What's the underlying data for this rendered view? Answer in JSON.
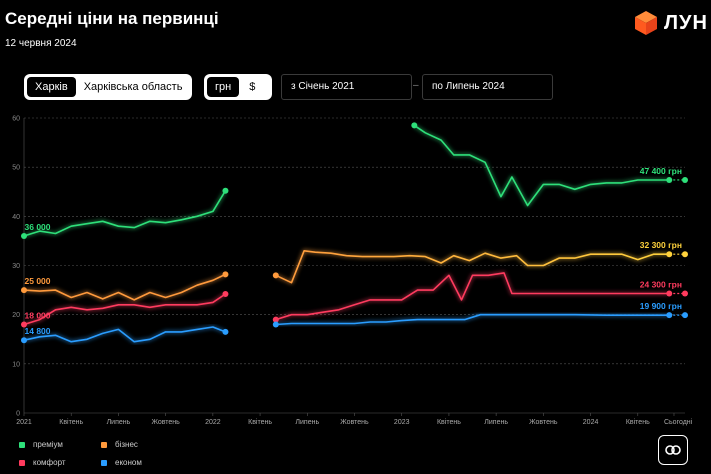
{
  "header": {
    "title": "Середні ціни на первинці",
    "date": "12 червня 2024",
    "logo_text": "ЛУН"
  },
  "controls": {
    "region_tabs": [
      {
        "label": "Харків",
        "active": true
      },
      {
        "label": "Харківська область",
        "active": false
      }
    ],
    "currency_tabs": [
      {
        "label": "грн",
        "active": true
      },
      {
        "label": "$",
        "active": false
      }
    ],
    "date_from": "з  Січень 2021",
    "date_to": "по  Липень 2024",
    "dash": "–"
  },
  "colors": {
    "premium": "#2ee07a",
    "business": "#ff9a3c",
    "comfort": "#ff3b5e",
    "economy": "#2a9dff",
    "business_recent": "#ffd23c"
  },
  "legend": [
    {
      "label": "преміум",
      "color": "#2ee07a"
    },
    {
      "label": "бізнес",
      "color": "#ff9a3c"
    },
    {
      "label": "комфорт",
      "color": "#ff3b5e"
    },
    {
      "label": "економ",
      "color": "#2a9dff"
    }
  ],
  "chart_data": {
    "type": "line",
    "x_range": [
      0,
      42
    ],
    "y_range": [
      0,
      60
    ],
    "y_ticks": [
      "0",
      "10",
      "20",
      "30",
      "40",
      "50",
      "60"
    ],
    "x_ticks": [
      {
        "x": 0,
        "label": "2021"
      },
      {
        "x": 3,
        "label": "Квітень"
      },
      {
        "x": 6,
        "label": "Липень"
      },
      {
        "x": 9,
        "label": "Жовтень"
      },
      {
        "x": 12,
        "label": "2022"
      },
      {
        "x": 15,
        "label": "Квітень"
      },
      {
        "x": 18,
        "label": "Липень"
      },
      {
        "x": 21,
        "label": "Жовтень"
      },
      {
        "x": 24,
        "label": "2023"
      },
      {
        "x": 27,
        "label": "Квітень"
      },
      {
        "x": 30,
        "label": "Липень"
      },
      {
        "x": 33,
        "label": "Жовтень"
      },
      {
        "x": 36,
        "label": "2024"
      },
      {
        "x": 39,
        "label": "Квітень"
      },
      {
        "x": 41.3,
        "label": "Сьогодні"
      }
    ],
    "series": [
      {
        "name": "преміум",
        "key": "premium",
        "segments": [
          [
            [
              0,
              36
            ],
            [
              0.5,
              36.5
            ],
            [
              1,
              37
            ],
            [
              2,
              36.5
            ],
            [
              3,
              38
            ],
            [
              4,
              38.5
            ],
            [
              5,
              39
            ],
            [
              6,
              38
            ],
            [
              7,
              37.7
            ],
            [
              8,
              39
            ],
            [
              9,
              38.7
            ],
            [
              10,
              39.3
            ],
            [
              11,
              40
            ],
            [
              12,
              41
            ],
            [
              12.8,
              45.2
            ]
          ],
          [
            [
              24.8,
              58.5
            ],
            [
              25.5,
              57
            ],
            [
              26.5,
              55.5
            ],
            [
              27.3,
              52.5
            ],
            [
              28.3,
              52.5
            ],
            [
              29.3,
              51
            ],
            [
              30.3,
              44
            ],
            [
              31,
              48
            ],
            [
              32,
              42.2
            ],
            [
              33,
              46.5
            ],
            [
              34,
              46.5
            ],
            [
              35,
              45.5
            ],
            [
              36,
              46.5
            ],
            [
              37,
              46.8
            ],
            [
              38,
              46.8
            ],
            [
              39,
              47.4
            ],
            [
              41,
              47.4
            ]
          ]
        ],
        "start_label": "36 000",
        "end_label": "47 400 грн"
      },
      {
        "name": "бізнес",
        "key": "business",
        "segments": [
          [
            [
              0,
              25
            ],
            [
              1,
              24.8
            ],
            [
              2,
              25
            ],
            [
              3,
              23.5
            ],
            [
              4,
              24.5
            ],
            [
              5,
              23.2
            ],
            [
              6,
              24.5
            ],
            [
              7,
              23
            ],
            [
              8,
              24.5
            ],
            [
              9,
              23.5
            ],
            [
              10,
              24.5
            ],
            [
              11,
              26
            ],
            [
              12,
              27
            ],
            [
              12.8,
              28.2
            ]
          ],
          [
            [
              16,
              28
            ],
            [
              17,
              26.5
            ],
            [
              17.8,
              33
            ],
            [
              18.5,
              32.7
            ],
            [
              19.5,
              32.5
            ],
            [
              20.5,
              32
            ],
            [
              21.5,
              31.8
            ],
            [
              22.5,
              31.8
            ],
            [
              23.5,
              31.8
            ],
            [
              24.5,
              32
            ],
            [
              25.5,
              31.8
            ],
            [
              26.5,
              30.5
            ],
            [
              27.3,
              32
            ],
            [
              28.3,
              31
            ],
            [
              29.3,
              32.5
            ],
            [
              30.3,
              31.5
            ],
            [
              31.3,
              32
            ],
            [
              32,
              30
            ],
            [
              33,
              30
            ],
            [
              34,
              31.5
            ],
            [
              35,
              31.5
            ],
            [
              36,
              32.3
            ],
            [
              38,
              32.3
            ],
            [
              39,
              31.2
            ],
            [
              40,
              32.3
            ],
            [
              41,
              32.3
            ]
          ]
        ],
        "start_label": "25 000",
        "end_label": "32 300 грн"
      },
      {
        "name": "комфорт",
        "key": "comfort",
        "segments": [
          [
            [
              0,
              18
            ],
            [
              1,
              19
            ],
            [
              2,
              21
            ],
            [
              3,
              21.5
            ],
            [
              4,
              21
            ],
            [
              5,
              21.3
            ],
            [
              6,
              22
            ],
            [
              7,
              22
            ],
            [
              8,
              21.5
            ],
            [
              9,
              22
            ],
            [
              10,
              22
            ],
            [
              11,
              22
            ],
            [
              12,
              22.5
            ],
            [
              12.8,
              24.2
            ]
          ],
          [
            [
              16,
              19
            ],
            [
              17,
              20
            ],
            [
              18,
              20
            ],
            [
              19,
              20.5
            ],
            [
              20,
              21
            ],
            [
              21,
              22
            ],
            [
              22,
              23
            ],
            [
              23,
              23
            ],
            [
              24,
              23
            ],
            [
              25,
              25
            ],
            [
              26,
              25
            ],
            [
              27,
              28
            ],
            [
              27.8,
              23
            ],
            [
              28.5,
              28
            ],
            [
              29.5,
              28
            ],
            [
              30.5,
              28.5
            ],
            [
              31,
              24.3
            ],
            [
              33,
              24.3
            ],
            [
              35,
              24.3
            ],
            [
              37,
              24.3
            ],
            [
              39,
              24.3
            ],
            [
              41,
              24.3
            ]
          ]
        ],
        "start_label": "18 000",
        "end_label": "24 300 грн"
      },
      {
        "name": "економ",
        "key": "economy",
        "segments": [
          [
            [
              0,
              14.8
            ],
            [
              1,
              15.5
            ],
            [
              2,
              15.8
            ],
            [
              3,
              14.5
            ],
            [
              4,
              15
            ],
            [
              5,
              16.2
            ],
            [
              6,
              17
            ],
            [
              7,
              14.5
            ],
            [
              8,
              15
            ],
            [
              9,
              16.5
            ],
            [
              10,
              16.5
            ],
            [
              11,
              17
            ],
            [
              12,
              17.5
            ],
            [
              12.8,
              16.5
            ]
          ],
          [
            [
              16,
              18
            ],
            [
              17,
              18.2
            ],
            [
              18,
              18.2
            ],
            [
              19,
              18.2
            ],
            [
              20,
              18.2
            ],
            [
              21,
              18.2
            ],
            [
              22,
              18.5
            ],
            [
              23,
              18.5
            ],
            [
              24,
              18.8
            ],
            [
              25,
              19
            ],
            [
              26,
              19
            ],
            [
              27,
              19
            ],
            [
              28,
              19
            ],
            [
              29,
              20
            ],
            [
              30,
              20
            ],
            [
              31,
              20
            ],
            [
              33,
              20
            ],
            [
              35,
              20
            ],
            [
              37,
              19.9
            ],
            [
              39,
              19.9
            ],
            [
              41,
              19.9
            ]
          ]
        ],
        "start_label": "14 800",
        "end_label": "19 900 грн"
      }
    ]
  }
}
